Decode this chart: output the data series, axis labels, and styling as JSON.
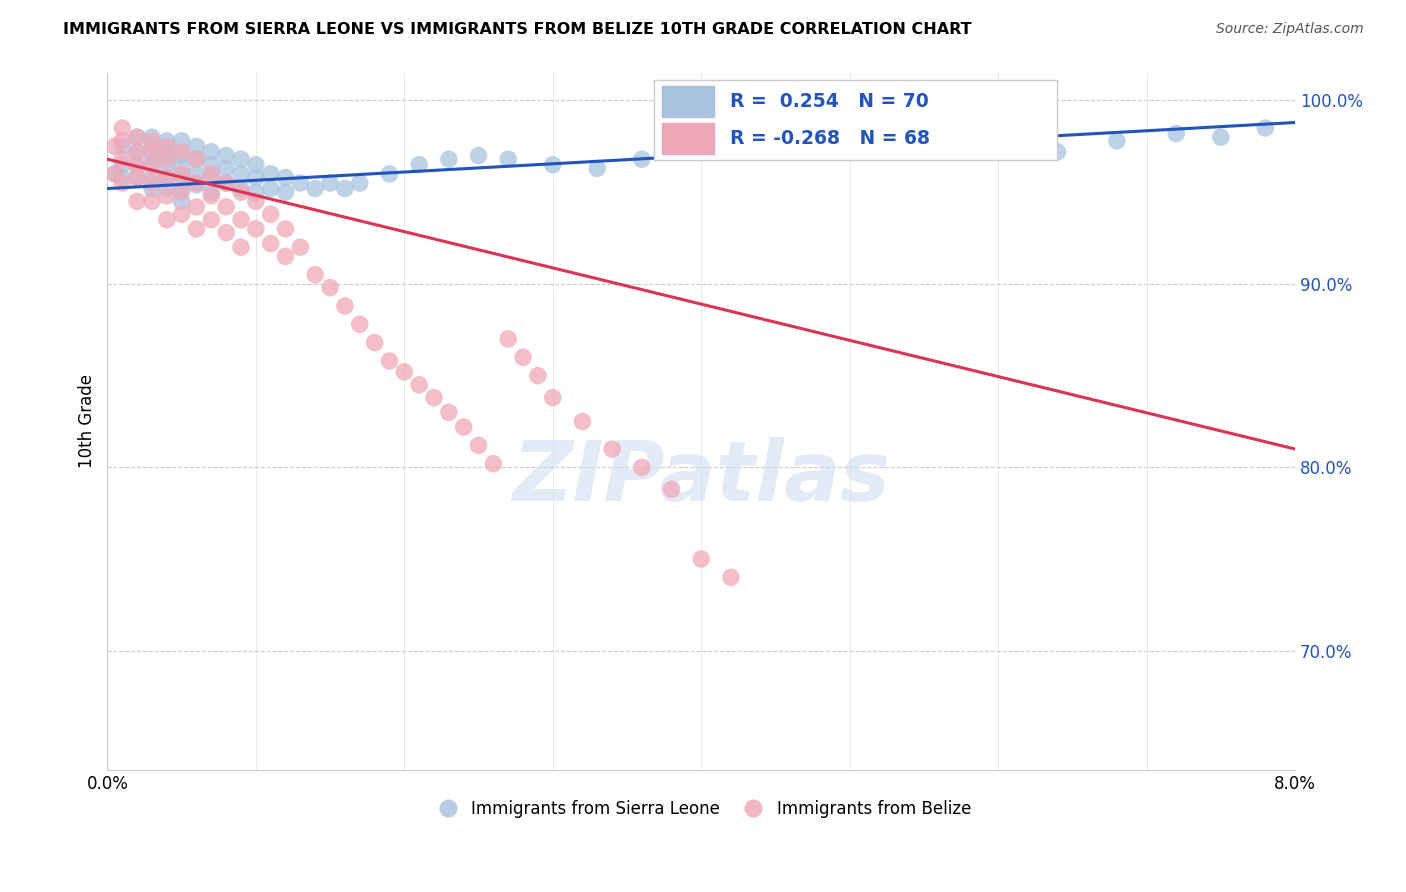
{
  "title": "IMMIGRANTS FROM SIERRA LEONE VS IMMIGRANTS FROM BELIZE 10TH GRADE CORRELATION CHART",
  "source": "Source: ZipAtlas.com",
  "ylabel": "10th Grade",
  "watermark": "ZIPatlas",
  "xlim": [
    0.0,
    0.08
  ],
  "ylim": [
    0.635,
    1.015
  ],
  "yticks": [
    0.7,
    0.8,
    0.9,
    1.0
  ],
  "ytick_labels": [
    "70.0%",
    "80.0%",
    "90.0%",
    "100.0%"
  ],
  "xticks": [
    0.0,
    0.01,
    0.02,
    0.03,
    0.04,
    0.05,
    0.06,
    0.07,
    0.08
  ],
  "xtick_labels": [
    "0.0%",
    "",
    "",
    "",
    "",
    "",
    "",
    "",
    "8.0%"
  ],
  "sierra_leone_R": 0.254,
  "sierra_leone_N": 70,
  "belize_R": -0.268,
  "belize_N": 68,
  "sierra_leone_color": "#a8c4e0",
  "belize_color": "#f0a8b8",
  "trend_blue": "#2255bb",
  "trend_pink": "#dd3355",
  "legend_label_1": "Immigrants from Sierra Leone",
  "legend_label_2": "Immigrants from Belize",
  "sl_trend_y0": 0.952,
  "sl_trend_y1": 0.988,
  "bz_trend_y0": 0.968,
  "bz_trend_y1": 0.81,
  "sierra_leone_x": [
    0.0005,
    0.001,
    0.001,
    0.001,
    0.002,
    0.002,
    0.002,
    0.002,
    0.003,
    0.003,
    0.003,
    0.003,
    0.003,
    0.003,
    0.004,
    0.004,
    0.004,
    0.004,
    0.004,
    0.005,
    0.005,
    0.005,
    0.005,
    0.005,
    0.005,
    0.006,
    0.006,
    0.006,
    0.006,
    0.007,
    0.007,
    0.007,
    0.007,
    0.008,
    0.008,
    0.008,
    0.009,
    0.009,
    0.009,
    0.01,
    0.01,
    0.01,
    0.011,
    0.011,
    0.012,
    0.012,
    0.013,
    0.014,
    0.015,
    0.016,
    0.017,
    0.019,
    0.021,
    0.023,
    0.025,
    0.027,
    0.03,
    0.033,
    0.036,
    0.04,
    0.044,
    0.048,
    0.052,
    0.056,
    0.06,
    0.064,
    0.068,
    0.072,
    0.075,
    0.078
  ],
  "sierra_leone_y": [
    0.96,
    0.975,
    0.965,
    0.958,
    0.98,
    0.972,
    0.965,
    0.958,
    0.98,
    0.975,
    0.97,
    0.965,
    0.958,
    0.952,
    0.978,
    0.972,
    0.965,
    0.958,
    0.952,
    0.978,
    0.97,
    0.964,
    0.958,
    0.952,
    0.945,
    0.975,
    0.968,
    0.96,
    0.954,
    0.972,
    0.965,
    0.958,
    0.95,
    0.97,
    0.963,
    0.955,
    0.968,
    0.96,
    0.952,
    0.965,
    0.958,
    0.95,
    0.96,
    0.952,
    0.958,
    0.95,
    0.955,
    0.952,
    0.955,
    0.952,
    0.955,
    0.96,
    0.965,
    0.968,
    0.97,
    0.968,
    0.965,
    0.963,
    0.968,
    0.972,
    0.975,
    0.978,
    0.98,
    0.977,
    0.975,
    0.972,
    0.978,
    0.982,
    0.98,
    0.985
  ],
  "belize_x": [
    0.0005,
    0.0005,
    0.001,
    0.001,
    0.001,
    0.001,
    0.002,
    0.002,
    0.002,
    0.002,
    0.002,
    0.003,
    0.003,
    0.003,
    0.003,
    0.003,
    0.004,
    0.004,
    0.004,
    0.004,
    0.004,
    0.005,
    0.005,
    0.005,
    0.005,
    0.006,
    0.006,
    0.006,
    0.006,
    0.007,
    0.007,
    0.007,
    0.008,
    0.008,
    0.008,
    0.009,
    0.009,
    0.009,
    0.01,
    0.01,
    0.011,
    0.011,
    0.012,
    0.012,
    0.013,
    0.014,
    0.015,
    0.016,
    0.017,
    0.018,
    0.019,
    0.02,
    0.021,
    0.022,
    0.023,
    0.024,
    0.025,
    0.026,
    0.027,
    0.028,
    0.029,
    0.03,
    0.032,
    0.034,
    0.036,
    0.038,
    0.04,
    0.042
  ],
  "belize_y": [
    0.975,
    0.96,
    0.985,
    0.978,
    0.968,
    0.955,
    0.98,
    0.972,
    0.964,
    0.958,
    0.945,
    0.978,
    0.972,
    0.964,
    0.955,
    0.945,
    0.975,
    0.968,
    0.958,
    0.948,
    0.935,
    0.972,
    0.96,
    0.95,
    0.938,
    0.968,
    0.955,
    0.942,
    0.93,
    0.96,
    0.948,
    0.935,
    0.955,
    0.942,
    0.928,
    0.95,
    0.935,
    0.92,
    0.945,
    0.93,
    0.938,
    0.922,
    0.93,
    0.915,
    0.92,
    0.905,
    0.898,
    0.888,
    0.878,
    0.868,
    0.858,
    0.852,
    0.845,
    0.838,
    0.83,
    0.822,
    0.812,
    0.802,
    0.87,
    0.86,
    0.85,
    0.838,
    0.825,
    0.81,
    0.8,
    0.788,
    0.75,
    0.74
  ]
}
